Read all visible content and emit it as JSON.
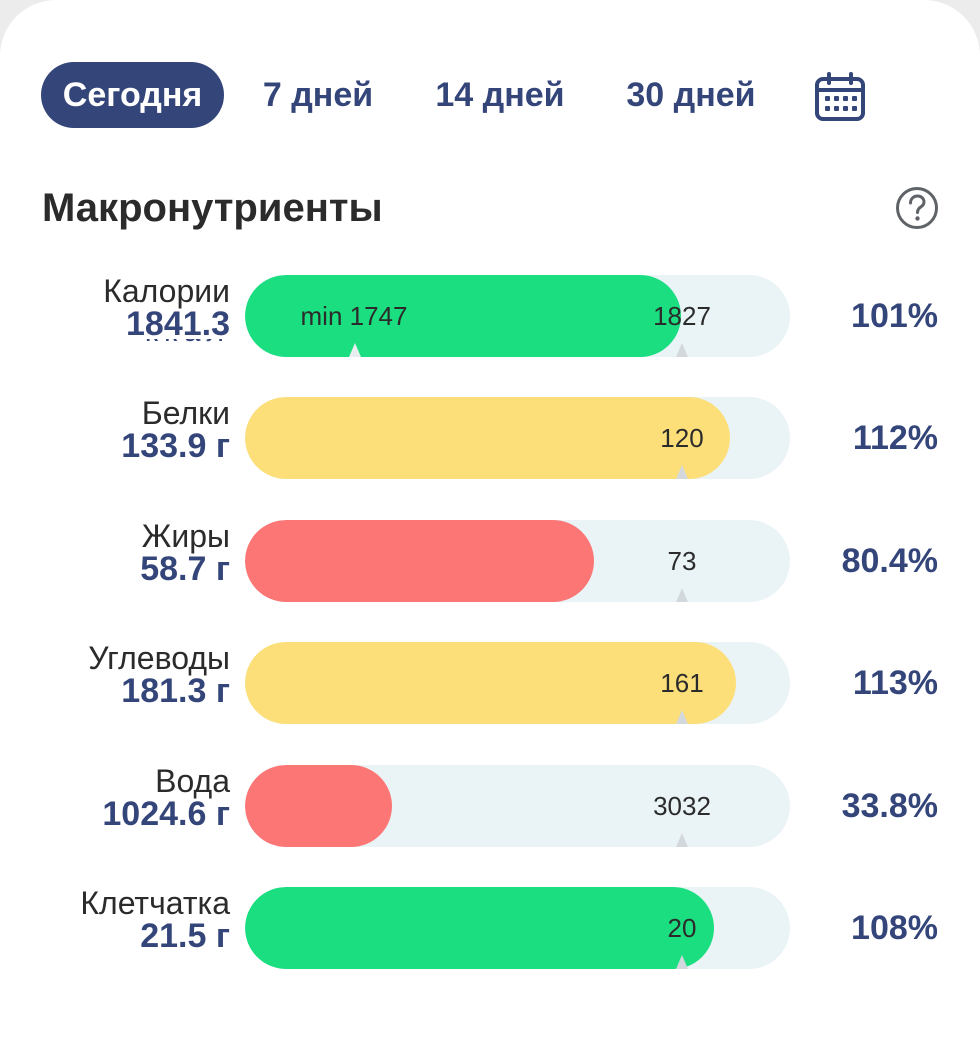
{
  "tabs": [
    {
      "label": "Сегодня",
      "active": true
    },
    {
      "label": "7 дней",
      "active": false
    },
    {
      "label": "14 дней",
      "active": false
    },
    {
      "label": "30 дней",
      "active": false
    }
  ],
  "section_title": "Макронутриенты",
  "colors": {
    "navy": "#34457a",
    "green": "#1ade7f",
    "yellow": "#fddf7a",
    "red": "#fd7676",
    "track": "#eaf3f6"
  },
  "rows": [
    {
      "name": "Калории",
      "amount": "1841.3",
      "unit_partial": "ккал",
      "target_label": "1827",
      "min_label": "min 1747",
      "percent": "101%",
      "fill_fraction": 0.8,
      "color": "#1ade7f"
    },
    {
      "name": "Белки",
      "amount": "133.9 г",
      "target_label": "120",
      "percent": "112%",
      "fill_fraction": 0.89,
      "color": "#fddf7a"
    },
    {
      "name": "Жиры",
      "amount": "58.7 г",
      "target_label": "73",
      "percent": "80.4%",
      "fill_fraction": 0.64,
      "color": "#fd7676"
    },
    {
      "name": "Углеводы",
      "amount": "181.3 г",
      "target_label": "161",
      "percent": "113%",
      "fill_fraction": 0.9,
      "color": "#fddf7a"
    },
    {
      "name": "Вода",
      "amount": "1024.6 г",
      "target_label": "3032",
      "percent": "33.8%",
      "fill_fraction": 0.27,
      "color": "#fd7676"
    },
    {
      "name": "Клетчатка",
      "amount": "21.5 г",
      "target_label": "20",
      "percent": "108%",
      "fill_fraction": 0.86,
      "color": "#1ade7f"
    }
  ]
}
